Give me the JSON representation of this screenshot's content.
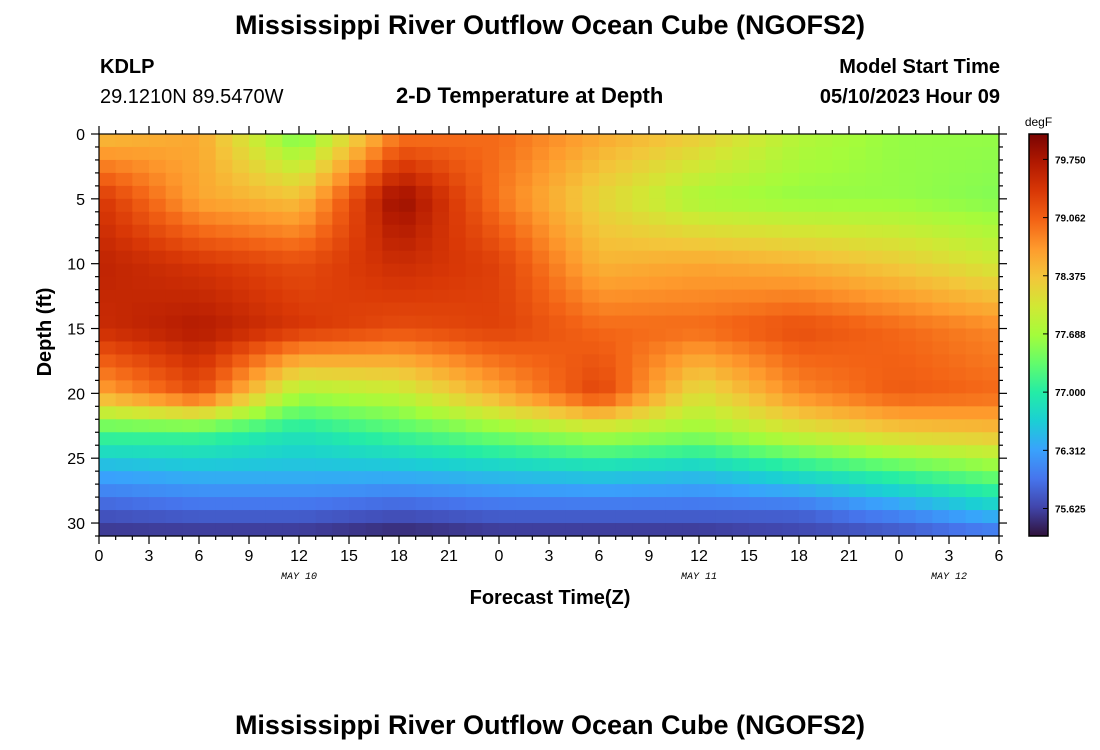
{
  "header": {
    "title": "Mississippi River Outflow Ocean Cube (NGOFS2)",
    "station_id": "KDLP",
    "coordinates": "29.1210N  89.5470W",
    "subtitle": "2-D Temperature at Depth",
    "model_start_label": "Model Start Time",
    "model_start_value": "05/10/2023 Hour 09"
  },
  "footer": {
    "title": "Mississippi River Outflow Ocean Cube (NGOFS2)"
  },
  "chart_data": {
    "type": "heatmap",
    "title": "2-D Temperature at Depth",
    "xlabel": "Forecast Time(Z)",
    "ylabel": "Depth (ft)",
    "x_range_hours": [
      0,
      54
    ],
    "y_range_ft": [
      0,
      31
    ],
    "x_tick_labels": [
      "0",
      "3",
      "6",
      "9",
      "12",
      "15",
      "18",
      "21",
      "0",
      "3",
      "6",
      "9",
      "12",
      "15",
      "18",
      "21",
      "0",
      "3",
      "6"
    ],
    "x_tick_hours": [
      0,
      3,
      6,
      9,
      12,
      15,
      18,
      21,
      24,
      27,
      30,
      33,
      36,
      39,
      42,
      45,
      48,
      51,
      54
    ],
    "date_labels": [
      {
        "text": "MAY 10",
        "hour": 12
      },
      {
        "text": "MAY 11",
        "hour": 36
      },
      {
        "text": "MAY 12",
        "hour": 51
      }
    ],
    "y_ticks": [
      0,
      5,
      10,
      15,
      20,
      25,
      30
    ],
    "y_tick_labels": [
      "0",
      "5",
      "10",
      "15",
      "20",
      "25",
      "30"
    ],
    "colorbar": {
      "unit": "degF",
      "min": 75.3,
      "max": 80.05,
      "ticks": [
        79.75,
        79.062,
        78.375,
        77.688,
        77.0,
        76.312,
        75.625
      ],
      "tick_labels": [
        "79.750",
        "79.062",
        "78.375",
        "77.688",
        "77.000",
        "76.312",
        "75.625"
      ],
      "colors": [
        "#30123b",
        "#4145ab",
        "#4675ed",
        "#39a2fc",
        "#1bcfd4",
        "#24eca6",
        "#61fc6c",
        "#a4fc3b",
        "#d1e834",
        "#f3c63a",
        "#fe9b2d",
        "#f36315",
        "#d93806",
        "#b11901",
        "#7a0402"
      ]
    },
    "field_hours": [
      0,
      6,
      12,
      18,
      24,
      30,
      36,
      42,
      48,
      54
    ],
    "field_depths_ft": [
      0,
      5,
      10,
      15,
      20,
      23,
      26,
      29,
      31
    ],
    "values_degF": [
      [
        78.4,
        78.6,
        77.4,
        78.9,
        79.0,
        78.6,
        78.3,
        77.8,
        77.6,
        77.6
      ],
      [
        79.4,
        78.6,
        78.4,
        79.9,
        78.9,
        78.2,
        77.7,
        77.6,
        77.6,
        77.5
      ],
      [
        79.6,
        79.4,
        79.2,
        79.5,
        79.3,
        78.5,
        78.6,
        78.5,
        78.3,
        78.0
      ],
      [
        79.5,
        79.7,
        79.4,
        79.2,
        79.3,
        79.0,
        79.0,
        79.2,
        79.0,
        78.8
      ],
      [
        78.6,
        79.2,
        77.7,
        77.9,
        78.6,
        79.3,
        78.1,
        78.8,
        79.1,
        79.0
      ],
      [
        77.2,
        77.2,
        76.9,
        77.2,
        77.5,
        77.8,
        77.6,
        78.0,
        78.3,
        78.4
      ],
      [
        76.4,
        76.5,
        76.5,
        76.5,
        76.6,
        76.7,
        76.6,
        76.9,
        77.2,
        77.5
      ],
      [
        75.8,
        75.9,
        75.9,
        75.8,
        75.9,
        75.9,
        75.9,
        75.9,
        76.2,
        76.6
      ],
      [
        75.5,
        75.5,
        75.5,
        75.4,
        75.5,
        75.5,
        75.5,
        75.6,
        75.7,
        75.9
      ]
    ]
  }
}
